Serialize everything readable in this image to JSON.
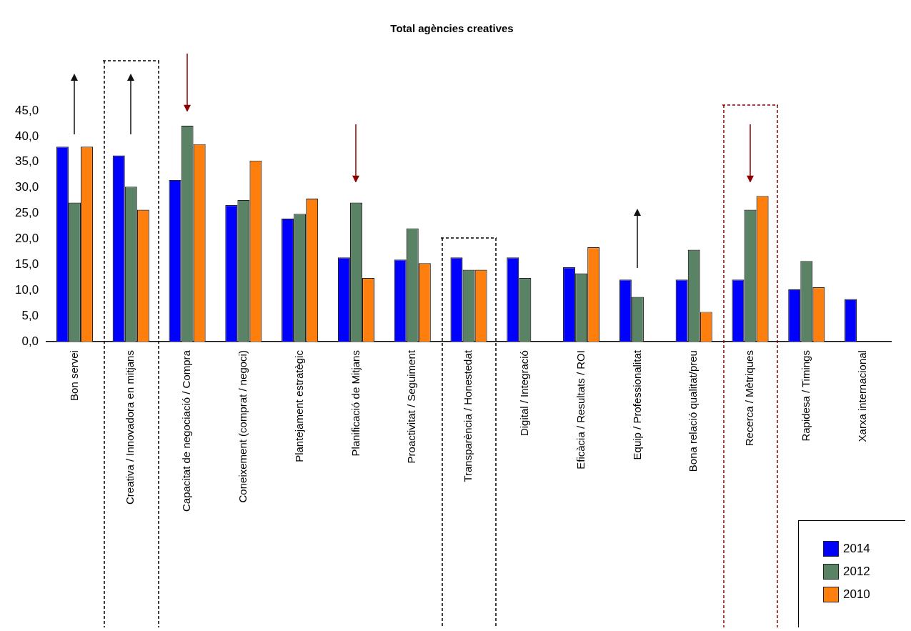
{
  "chart_data": {
    "type": "bar",
    "title": "Total agències creatives",
    "categories": [
      "Bon servei",
      "Creativa / Innovadora en mitjans",
      "Capacitat de negociació / Compra",
      "Coneixement (comprat / negoci)",
      "Plantejament estratègic",
      "Planificació de Mitjans",
      "Proactivitat / Seguiment",
      "Transparència / Honestedat",
      "Digital / Integració",
      "Eficàcia / Resultats / ROI",
      "Equip / Professionalitat",
      "Bona relació qualitat/preu",
      "Recerca / Mètriques",
      "Rapidesa / Timings",
      "Xarxa internacional"
    ],
    "series": [
      {
        "name": "2014",
        "color": "#0000ff",
        "values": [
          38.0,
          36.3,
          31.5,
          26.6,
          24.0,
          16.4,
          16.0,
          16.4,
          16.4,
          14.5,
          12.1,
          12.1,
          12.1,
          10.2,
          8.3
        ]
      },
      {
        "name": "2012",
        "color": "#5a8264",
        "values": [
          27.1,
          30.2,
          42.1,
          27.6,
          24.9,
          27.1,
          22.1,
          14.0,
          12.4,
          13.3,
          8.7,
          17.9,
          25.7,
          15.7,
          null
        ]
      },
      {
        "name": "2010",
        "color": "#ff7f0e",
        "values": [
          38.0,
          25.7,
          38.5,
          35.3,
          27.9,
          12.4,
          15.3,
          14.0,
          null,
          18.4,
          null,
          5.8,
          28.4,
          10.6,
          null
        ]
      }
    ],
    "ylim": [
      0,
      45
    ],
    "yticks": [
      {
        "value": 0,
        "label": "0,0"
      },
      {
        "value": 5,
        "label": "5,0"
      },
      {
        "value": 10,
        "label": "10,0"
      },
      {
        "value": 15,
        "label": "15,0"
      },
      {
        "value": 20,
        "label": "20,0"
      },
      {
        "value": 25,
        "label": "25,0"
      },
      {
        "value": 30,
        "label": "30,0"
      },
      {
        "value": 35,
        "label": "35,0"
      },
      {
        "value": 40,
        "label": "40,0"
      },
      {
        "value": 45,
        "label": "45,0"
      }
    ],
    "grid": false,
    "legend": "bottom right"
  }
}
